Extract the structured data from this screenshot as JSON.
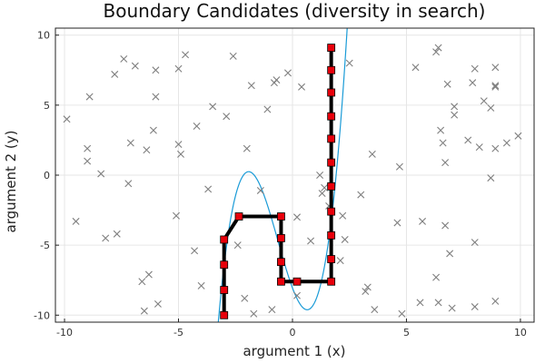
{
  "chart_data": {
    "type": "scatter",
    "title": "Boundary Candidates (diversity in search)",
    "xlabel": "argument 1 (x)",
    "ylabel": "argument 2 (y)",
    "xlim": [
      -10.4,
      10.6
    ],
    "ylim": [
      -10.5,
      10.5
    ],
    "xticks": [
      -10,
      -5,
      0,
      5,
      10
    ],
    "yticks": [
      -10,
      -5,
      0,
      5,
      10
    ],
    "grid": true,
    "legend": "none",
    "colors": {
      "curve": "#1a9bd7",
      "samples": "#7f7f7f",
      "path": "#000000",
      "markers": "#e8000b",
      "grid": "#e6e6e6",
      "frame": "#222222"
    },
    "series": [
      {
        "type": "line",
        "curve": "cubic",
        "x_range": [
          -3.4,
          2.45
        ],
        "points": [
          [
            -3.25,
            -10.4
          ],
          [
            -2.15,
            0.0
          ],
          [
            0.8,
            -9.5
          ],
          [
            2.4,
            10.5
          ]
        ]
      },
      {
        "type": "scatter",
        "marker": "x",
        "points": [
          [
            -9.9,
            4.0
          ],
          [
            -9.5,
            -3.3
          ],
          [
            -9.0,
            1.9
          ],
          [
            -9.0,
            1.0
          ],
          [
            -8.9,
            5.6
          ],
          [
            -8.4,
            0.1
          ],
          [
            -8.2,
            -4.5
          ],
          [
            -7.8,
            7.2
          ],
          [
            -7.7,
            -4.2
          ],
          [
            -7.4,
            8.3
          ],
          [
            -7.2,
            -0.6
          ],
          [
            -7.1,
            2.3
          ],
          [
            -6.9,
            7.8
          ],
          [
            -6.6,
            -7.6
          ],
          [
            -6.5,
            -9.7
          ],
          [
            -6.4,
            1.8
          ],
          [
            -6.3,
            -7.1
          ],
          [
            -6.1,
            3.2
          ],
          [
            -6.0,
            7.5
          ],
          [
            -6.0,
            5.6
          ],
          [
            -5.9,
            -9.2
          ],
          [
            -5.1,
            -2.9
          ],
          [
            -5.0,
            7.6
          ],
          [
            -5.0,
            2.2
          ],
          [
            -4.9,
            1.5
          ],
          [
            -4.7,
            8.6
          ],
          [
            -4.3,
            -5.4
          ],
          [
            -4.2,
            3.5
          ],
          [
            -4.0,
            -7.9
          ],
          [
            -3.7,
            -1.0
          ],
          [
            -3.5,
            4.9
          ],
          [
            -2.9,
            4.2
          ],
          [
            -2.6,
            8.5
          ],
          [
            -2.4,
            -5.0
          ],
          [
            -2.1,
            -8.8
          ],
          [
            -2.0,
            1.9
          ],
          [
            -1.8,
            6.4
          ],
          [
            -1.7,
            -9.9
          ],
          [
            -1.4,
            -1.1
          ],
          [
            -1.1,
            4.7
          ],
          [
            -0.9,
            -9.6
          ],
          [
            -0.8,
            6.6
          ],
          [
            -0.7,
            6.8
          ],
          [
            -0.2,
            7.3
          ],
          [
            0.2,
            -3.0
          ],
          [
            0.2,
            -8.6
          ],
          [
            0.4,
            6.3
          ],
          [
            0.8,
            -4.7
          ],
          [
            1.2,
            0.0
          ],
          [
            1.3,
            -1.3
          ],
          [
            1.4,
            -0.9
          ],
          [
            1.6,
            -2.2
          ],
          [
            2.1,
            -6.1
          ],
          [
            2.2,
            -2.9
          ],
          [
            2.3,
            -4.6
          ],
          [
            2.5,
            8.0
          ],
          [
            3.0,
            -1.4
          ],
          [
            3.2,
            -8.3
          ],
          [
            3.3,
            -8.0
          ],
          [
            3.5,
            1.5
          ],
          [
            3.6,
            -9.6
          ],
          [
            4.6,
            -3.4
          ],
          [
            4.7,
            0.6
          ],
          [
            4.8,
            -9.9
          ],
          [
            5.4,
            7.7
          ],
          [
            5.6,
            -9.1
          ],
          [
            5.7,
            -3.3
          ],
          [
            6.3,
            8.8
          ],
          [
            6.3,
            -7.3
          ],
          [
            6.4,
            9.1
          ],
          [
            6.4,
            -9.1
          ],
          [
            6.5,
            3.2
          ],
          [
            6.6,
            2.3
          ],
          [
            6.7,
            0.9
          ],
          [
            6.7,
            -3.6
          ],
          [
            6.8,
            6.5
          ],
          [
            6.9,
            -5.6
          ],
          [
            7.0,
            -9.5
          ],
          [
            7.1,
            4.3
          ],
          [
            7.1,
            4.9
          ],
          [
            7.7,
            2.5
          ],
          [
            7.9,
            6.6
          ],
          [
            8.0,
            -9.4
          ],
          [
            8.0,
            -4.8
          ],
          [
            8.0,
            7.6
          ],
          [
            8.2,
            2.0
          ],
          [
            8.4,
            5.3
          ],
          [
            8.7,
            4.8
          ],
          [
            8.7,
            -0.2
          ],
          [
            8.9,
            1.9
          ],
          [
            8.9,
            6.4
          ],
          [
            8.9,
            6.3
          ],
          [
            8.9,
            7.7
          ],
          [
            8.9,
            -9.0
          ],
          [
            9.4,
            2.3
          ],
          [
            9.9,
            2.8
          ]
        ]
      },
      {
        "type": "line",
        "stroke": "thick",
        "marker": "square",
        "points": [
          [
            -3.0,
            -10.0
          ],
          [
            -3.0,
            -8.2
          ],
          [
            -3.0,
            -6.4
          ],
          [
            -3.0,
            -4.6
          ],
          [
            -2.35,
            -2.95
          ],
          [
            -0.5,
            -2.95
          ],
          [
            -0.5,
            -4.5
          ],
          [
            -0.5,
            -6.2
          ],
          [
            -0.5,
            -7.6
          ],
          [
            0.2,
            -7.6
          ],
          [
            1.7,
            -7.6
          ],
          [
            1.7,
            -6.0
          ],
          [
            1.7,
            -4.3
          ],
          [
            1.7,
            -2.6
          ],
          [
            1.7,
            -0.8
          ],
          [
            1.7,
            0.9
          ],
          [
            1.7,
            2.6
          ],
          [
            1.7,
            4.2
          ],
          [
            1.7,
            5.9
          ],
          [
            1.7,
            7.5
          ],
          [
            1.7,
            9.1
          ]
        ]
      }
    ]
  }
}
